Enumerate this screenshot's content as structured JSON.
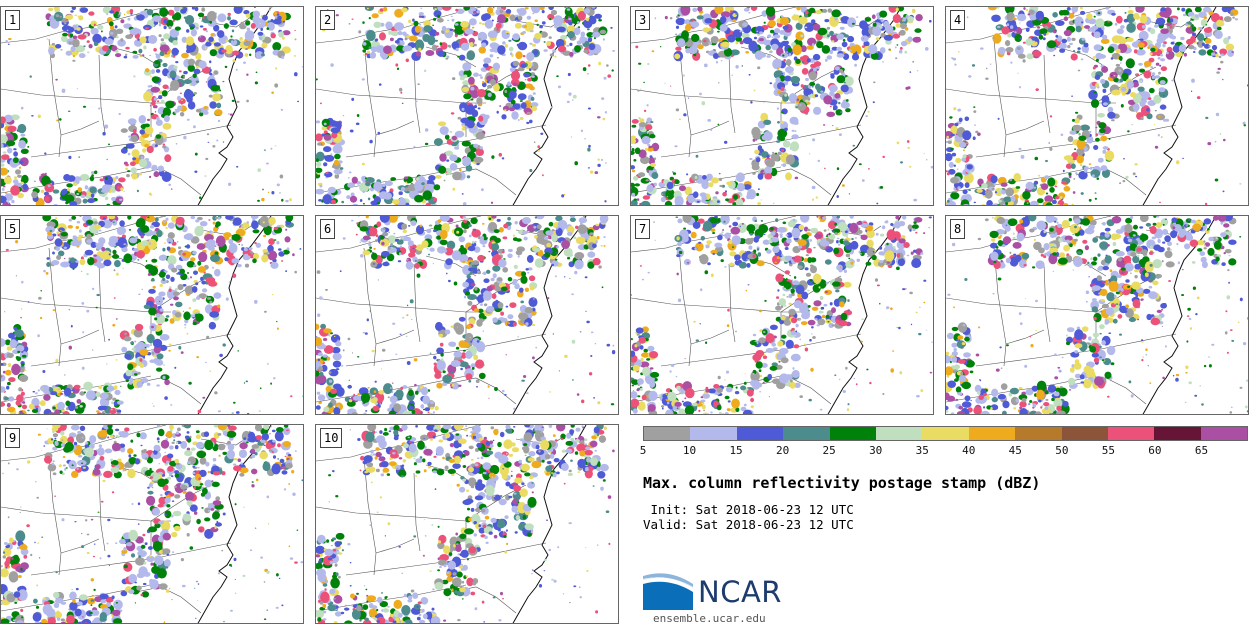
{
  "stamps": {
    "members": [
      "1",
      "2",
      "3",
      "4",
      "5",
      "6",
      "7",
      "8",
      "9",
      "10"
    ]
  },
  "colorbar": {
    "ticks": [
      "5",
      "10",
      "15",
      "20",
      "25",
      "30",
      "35",
      "40",
      "45",
      "50",
      "55",
      "60",
      "65"
    ],
    "colors": [
      "#a0a0a0",
      "#b3b9ea",
      "#4f5ad6",
      "#4c8c8c",
      "#00820a",
      "#bfdfbf",
      "#eadc62",
      "#eeab1e",
      "#b57b2b",
      "#8c553a",
      "#ec5279",
      "#661536",
      "#aa4fa4"
    ]
  },
  "title": "Max. column reflectivity postage stamp (dBZ)",
  "init_line": " Init: Sat 2018-06-23 12 UTC",
  "valid_line": "Valid: Sat 2018-06-23 12 UTC",
  "logo": {
    "name": "NCAR",
    "url": "ensemble.ucar.edu",
    "colors": {
      "swoosh": "#0a6fb8",
      "text": "#1d3c6e"
    }
  }
}
